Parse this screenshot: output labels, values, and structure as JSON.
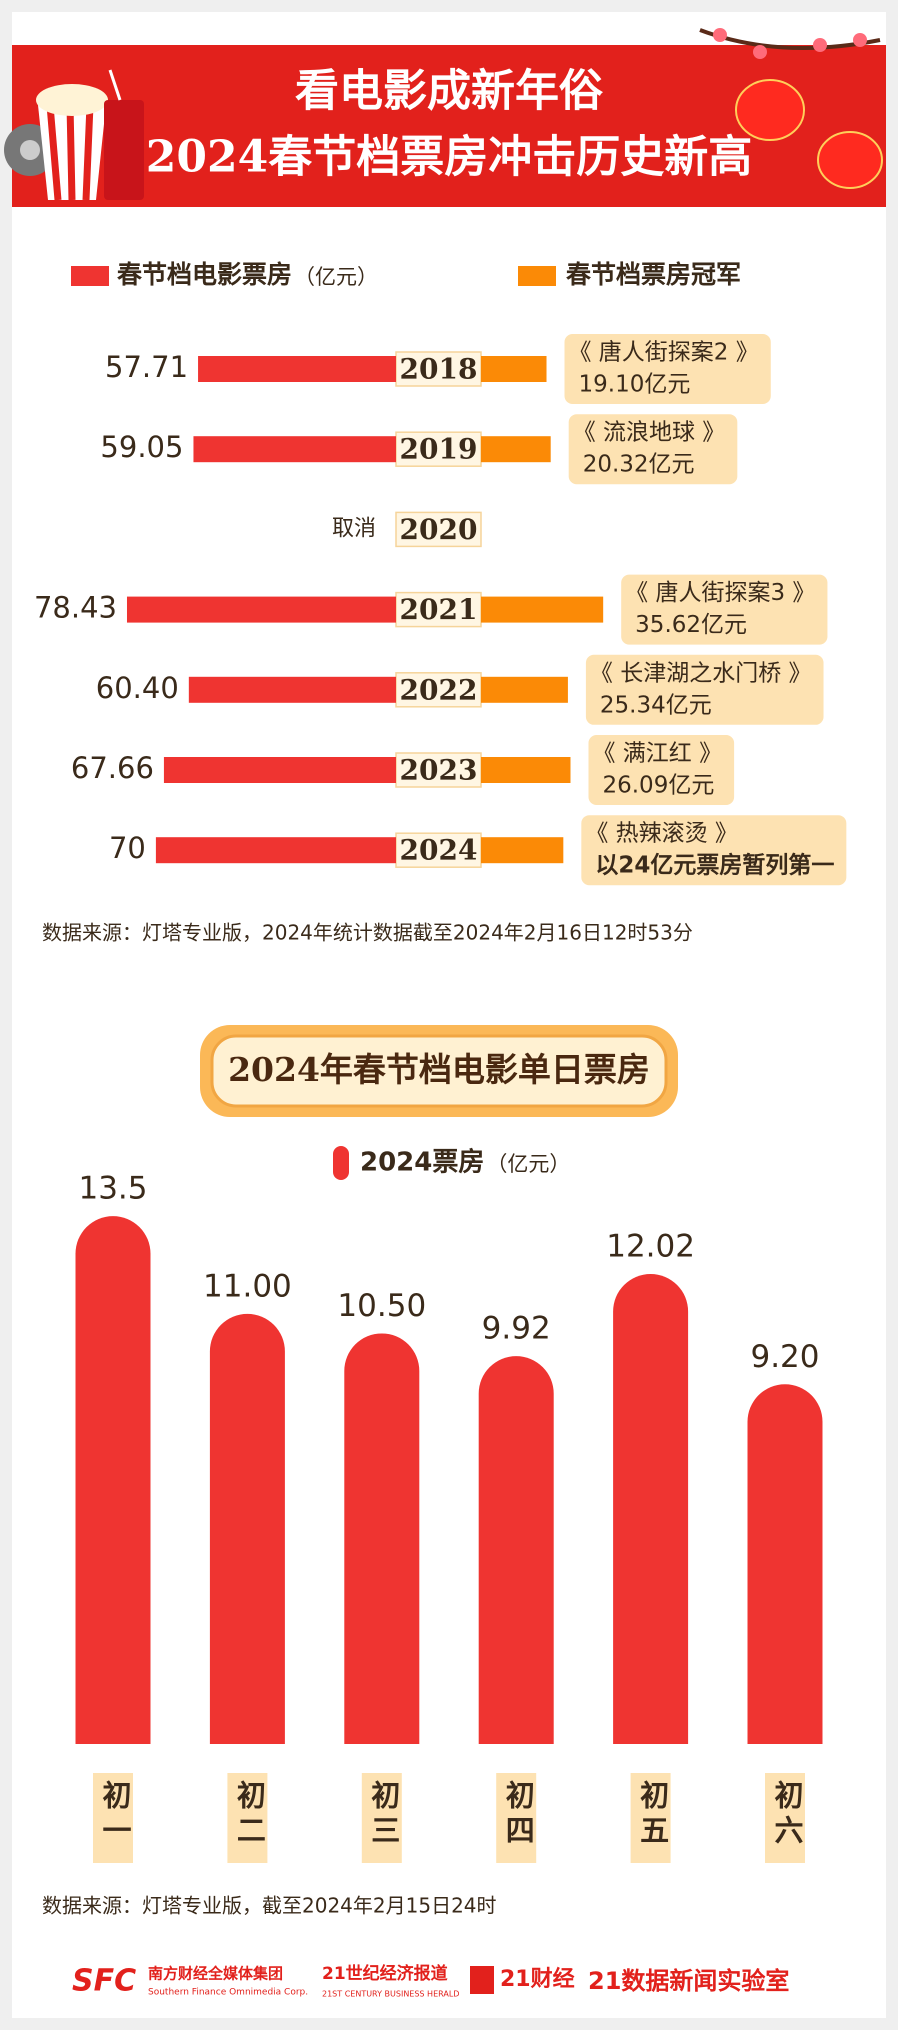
{
  "header": {
    "title_line1": "看电影成新年俗",
    "title_line2": "2024春节档票房冲击历史新高"
  },
  "chart_data": [
    {
      "type": "diverging-bar",
      "categories": [
        "2018",
        "2019",
        "2020",
        "2021",
        "2022",
        "2023",
        "2024"
      ],
      "unit": "（亿元）",
      "annotation": "取消",
      "series": [
        {
          "name": "春节档电影票房",
          "color": "#ef3431",
          "values": [
            57.71,
            59.05,
            null,
            78.43,
            60.4,
            67.66,
            70
          ],
          "value_labels": [
            "57.71",
            "59.05",
            null,
            "78.43",
            "60.40",
            "67.66",
            "70"
          ]
        },
        {
          "name": "春节档票房冠军",
          "color": "#fb8a06",
          "values": [
            19.1,
            20.32,
            null,
            35.62,
            25.34,
            26.09,
            24
          ],
          "value_labels": [
            "19.10亿元",
            "20.32亿元",
            null,
            "35.62亿元",
            "25.34亿元",
            "26.09亿元",
            "以24亿元票房暂列第一"
          ]
        }
      ],
      "films": [
        "《 唐人街探案2 》",
        "《 流浪地球 》",
        null,
        "《 唐人街探案3 》",
        "《 长津湖之水门桥 》",
        "《 满江红 》",
        "《 热辣滚烫 》"
      ],
      "source": "数据来源：灯塔专业版，2024年统计数据截至2024年2月16日12时53分"
    },
    {
      "type": "bar",
      "title": "2024年春节档电影单日票房",
      "categories": [
        "初一",
        "初二",
        "初三",
        "初四",
        "初五",
        "初六"
      ],
      "series": [
        {
          "name": "2024票房",
          "color": "#ef3431",
          "values": [
            13.5,
            11.0,
            10.5,
            9.92,
            12.02,
            9.2
          ],
          "value_labels": [
            "13.5",
            "11.00",
            "10.50",
            "9.92",
            "12.02",
            "9.20"
          ]
        }
      ],
      "unit": "（亿元）",
      "source": "数据来源：灯塔专业版，截至2024年2月15日24时"
    }
  ],
  "footer": {
    "logo1": "SFC",
    "logo1_cn": "南方财经全媒体集团",
    "logo1_en": "Southern Finance Omnimedia Corp.",
    "logo2_cn": "21世纪经济报道",
    "logo2_en": "21ST CENTURY BUSINESS HERALD",
    "logo3": "21财经",
    "logo4": "21数据新闻实验室"
  }
}
